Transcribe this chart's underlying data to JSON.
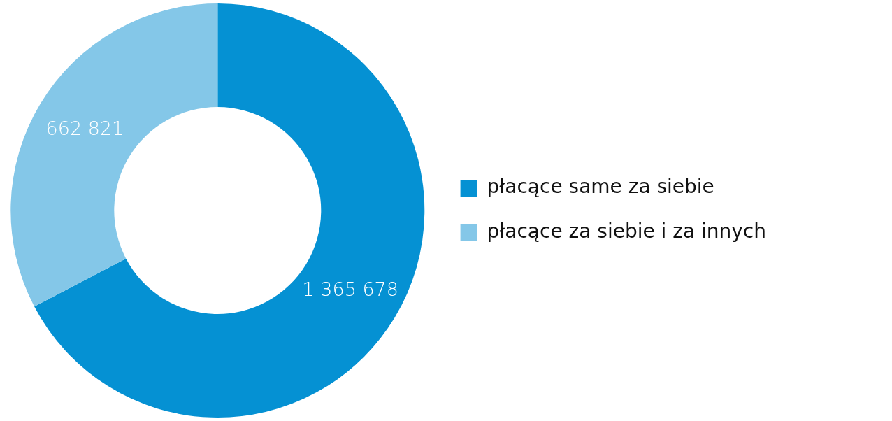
{
  "chart_data": {
    "type": "donut",
    "categories": [
      "płacące same za siebie",
      "płacące za siebie i za innych"
    ],
    "values": [
      1365678,
      662821
    ],
    "colors": [
      "#0591d3",
      "#84c7e8"
    ],
    "value_labels": [
      "1 365 678",
      "662 821"
    ],
    "legend": "right"
  }
}
